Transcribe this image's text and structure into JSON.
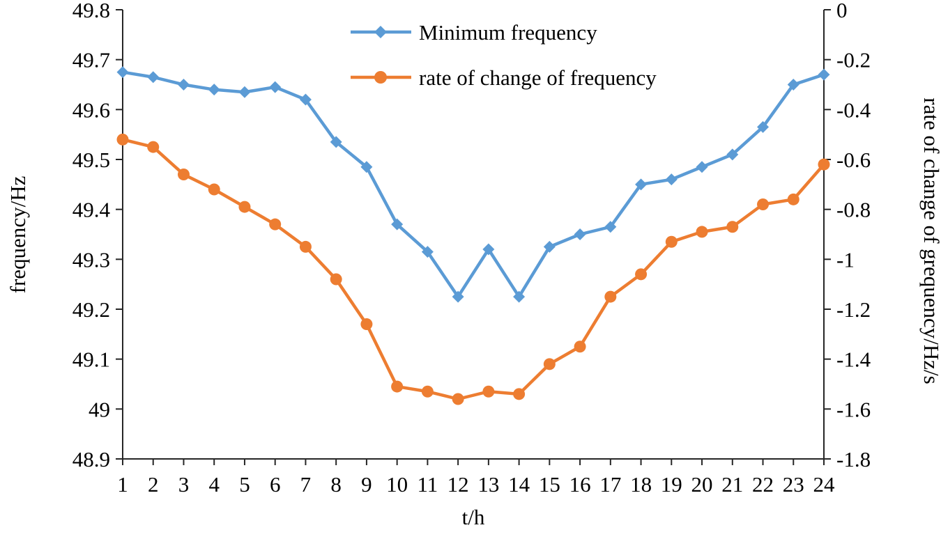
{
  "chart_data": {
    "type": "line",
    "title": "",
    "xlabel": "t/h",
    "ylabel_left": "frequency/Hz",
    "ylabel_right": "rate of change of grequency/Hz/s",
    "grid": false,
    "legend_position": "top-inside",
    "x": [
      1,
      2,
      3,
      4,
      5,
      6,
      7,
      8,
      9,
      10,
      11,
      12,
      13,
      14,
      15,
      16,
      17,
      18,
      19,
      20,
      21,
      22,
      23,
      24
    ],
    "series": [
      {
        "name": "Minimum frequency",
        "axis": "left",
        "color": "#5B9BD5",
        "marker": "diamond",
        "values": [
          49.675,
          49.665,
          49.65,
          49.64,
          49.635,
          49.645,
          49.62,
          49.535,
          49.485,
          49.37,
          49.315,
          49.225,
          49.32,
          49.225,
          49.325,
          49.35,
          49.365,
          49.45,
          49.46,
          49.485,
          49.51,
          49.565,
          49.65,
          49.67
        ]
      },
      {
        "name": "rate of change of frequency",
        "axis": "right",
        "color": "#ED7D31",
        "marker": "circle",
        "values": [
          -0.52,
          -0.55,
          -0.66,
          -0.72,
          -0.79,
          -0.86,
          -0.95,
          -1.08,
          -1.26,
          -1.51,
          -1.53,
          -1.56,
          -1.53,
          -1.54,
          -1.42,
          -1.35,
          -1.15,
          -1.06,
          -0.93,
          -0.89,
          -0.87,
          -0.78,
          -0.76,
          -0.62
        ]
      }
    ],
    "left_axis": {
      "min": 48.9,
      "max": 49.8,
      "tick_step": 0.1,
      "tick_labels": [
        "48.9",
        "49",
        "49.1",
        "49.2",
        "49.3",
        "49.4",
        "49.5",
        "49.6",
        "49.7",
        "49.8"
      ]
    },
    "right_axis": {
      "min": -1.8,
      "max": 0,
      "tick_step": 0.2,
      "tick_labels": [
        "0",
        "-0.2",
        "-0.4",
        "-0.6",
        "-0.8",
        "-1",
        "-1.2",
        "-1.4",
        "-1.6",
        "-1.8"
      ]
    },
    "x_axis": {
      "tick_labels": [
        "1",
        "2",
        "3",
        "4",
        "5",
        "6",
        "7",
        "8",
        "9",
        "10",
        "11",
        "12",
        "13",
        "14",
        "15",
        "16",
        "17",
        "18",
        "19",
        "20",
        "21",
        "22",
        "23",
        "24"
      ]
    }
  }
}
